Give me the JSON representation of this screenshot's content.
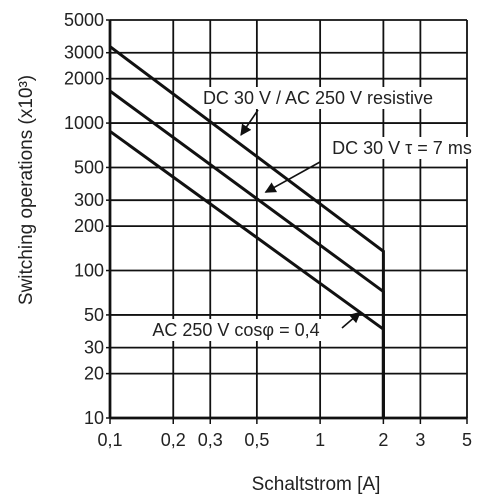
{
  "chart_data": {
    "type": "line",
    "xlabel": "Schaltstrom [A]",
    "ylabel": "Switching operations (x10³)",
    "x_scale": "log",
    "y_scale": "log",
    "xlim": [
      0.1,
      5
    ],
    "ylim": [
      10,
      5000
    ],
    "grid": true,
    "x_ticks": [
      {
        "value": 0.1,
        "label": "0,1"
      },
      {
        "value": 0.2,
        "label": "0,2"
      },
      {
        "value": 0.3,
        "label": "0,3"
      },
      {
        "value": 0.5,
        "label": "0,5"
      },
      {
        "value": 1,
        "label": "1"
      },
      {
        "value": 2,
        "label": "2"
      },
      {
        "value": 3,
        "label": "3"
      },
      {
        "value": 5,
        "label": "5"
      }
    ],
    "y_ticks": [
      {
        "value": 10,
        "label": "10"
      },
      {
        "value": 20,
        "label": "20"
      },
      {
        "value": 30,
        "label": "30"
      },
      {
        "value": 50,
        "label": "50"
      },
      {
        "value": 100,
        "label": "100"
      },
      {
        "value": 200,
        "label": "200"
      },
      {
        "value": 300,
        "label": "300"
      },
      {
        "value": 500,
        "label": "500"
      },
      {
        "value": 1000,
        "label": "1000"
      },
      {
        "value": 2000,
        "label": "2000"
      },
      {
        "value": 3000,
        "label": "3000"
      },
      {
        "value": 5000,
        "label": "5000"
      }
    ],
    "series": [
      {
        "name": "DC 30 V / AC 250 V resistive",
        "x": [
          0.1,
          2,
          2
        ],
        "y": [
          3300,
          135,
          10
        ]
      },
      {
        "name": "DC 30 V τ = 7 ms",
        "x": [
          0.1,
          2,
          2
        ],
        "y": [
          1650,
          72,
          10
        ]
      },
      {
        "name": "AC 250 V cosφ = 0,4",
        "x": [
          0.1,
          2,
          2
        ],
        "y": [
          880,
          40,
          10
        ]
      }
    ],
    "annotations": [
      {
        "text": "DC 30 V / AC 250 V resistive",
        "target": [
          0.42,
          830
        ]
      },
      {
        "text": "DC 30 V τ = 7 ms",
        "target": [
          0.55,
          340
        ]
      },
      {
        "text": "AC 250 V cosφ = 0,4",
        "target": [
          1.55,
          52
        ]
      }
    ]
  },
  "colors": {
    "line": "#111111",
    "grid": "#111111",
    "text": "#222222",
    "background": "#ffffff"
  }
}
